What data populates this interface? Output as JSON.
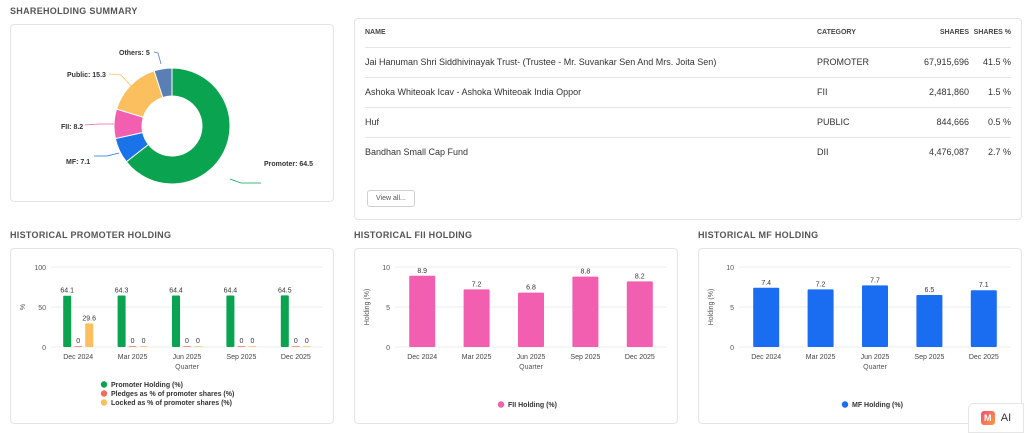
{
  "summary": {
    "title": "SHAREHOLDING SUMMARY",
    "donut": [
      {
        "label": "Promoter",
        "value": 64.5,
        "color": "#0aa34f"
      },
      {
        "label": "MF",
        "value": 7.1,
        "color": "#1a73e8"
      },
      {
        "label": "FII",
        "value": 8.2,
        "color": "#f25eb0"
      },
      {
        "label": "Public",
        "value": 15.3,
        "color": "#fbbf5e"
      },
      {
        "label": "Others",
        "value": 5,
        "color": "#5a7fb5"
      }
    ],
    "donut_labels": {
      "promoter": "Promoter: 64.5",
      "mf": "MF: 7.1",
      "fii": "FII: 8.2",
      "public": "Public: 15.3",
      "others": "Others: 5"
    }
  },
  "table": {
    "headers": {
      "name": "NAME",
      "category": "CATEGORY",
      "shares": "SHARES",
      "shares_pct": "SHARES %"
    },
    "rows": [
      {
        "name": "Jai Hanuman Shri Siddhivinayak Trust- (Trustee - Mr. Suvankar Sen And Mrs. Joita Sen)",
        "category": "PROMOTER",
        "shares": "67,915,696",
        "pct": "41.5 %"
      },
      {
        "name": "Ashoka Whiteoak Icav - Ashoka Whiteoak India Oppor",
        "category": "FII",
        "shares": "2,481,860",
        "pct": "1.5 %"
      },
      {
        "name": "Huf",
        "category": "PUBLIC",
        "shares": "844,666",
        "pct": "0.5 %"
      },
      {
        "name": "Bandhan Small Cap Fund",
        "category": "DII",
        "shares": "4,476,087",
        "pct": "2.7 %"
      }
    ],
    "view_all": "View all..."
  },
  "promoter_chart": {
    "title": "HISTORICAL PROMOTER HOLDING",
    "chart_data": {
      "type": "bar",
      "categories": [
        "Dec 2024",
        "Mar 2025",
        "Jun 2025",
        "Sep 2025",
        "Dec 2025"
      ],
      "series": [
        {
          "name": "Promoter Holding (%)",
          "values": [
            64.1,
            64.3,
            64.4,
            64.4,
            64.5
          ],
          "color": "#0aa34f"
        },
        {
          "name": "Pledges as % of promoter shares (%)",
          "values": [
            0,
            0,
            0,
            0,
            0
          ],
          "color": "#f26b5b"
        },
        {
          "name": "Locked as % of promoter shares (%)",
          "values": [
            29.6,
            0,
            0,
            0,
            0
          ],
          "color": "#fbbf5e"
        }
      ],
      "xlabel": "Quarter",
      "ylabel": "%",
      "yticks": [
        "0",
        "50",
        "100"
      ],
      "ylim": [
        0,
        100
      ]
    }
  },
  "fii_chart": {
    "title": "HISTORICAL FII HOLDING",
    "chart_data": {
      "type": "bar",
      "categories": [
        "Dec 2024",
        "Mar 2025",
        "Jun 2025",
        "Sep 2025",
        "Dec 2025"
      ],
      "series": [
        {
          "name": "FII Holding (%)",
          "values": [
            8.9,
            7.2,
            6.8,
            8.8,
            8.2
          ],
          "color": "#f25eb0"
        }
      ],
      "xlabel": "Quarter",
      "ylabel": "Holding (%)",
      "yticks": [
        "0",
        "5",
        "10"
      ],
      "ylim": [
        0,
        10
      ]
    }
  },
  "mf_chart": {
    "title": "HISTORICAL MF HOLDING",
    "chart_data": {
      "type": "bar",
      "categories": [
        "Dec 2024",
        "Mar 2025",
        "Jun 2025",
        "Sep 2025",
        "Dec 2025"
      ],
      "series": [
        {
          "name": "MF Holding (%)",
          "values": [
            7.4,
            7.2,
            7.7,
            6.5,
            7.1
          ],
          "color": "#1a6df0"
        }
      ],
      "xlabel": "Quarter",
      "ylabel": "Holding (%)",
      "yticks": [
        "0",
        "5",
        "10"
      ],
      "ylim": [
        0,
        10
      ]
    }
  },
  "ai_badge": {
    "label": "AI",
    "logo": "M"
  }
}
